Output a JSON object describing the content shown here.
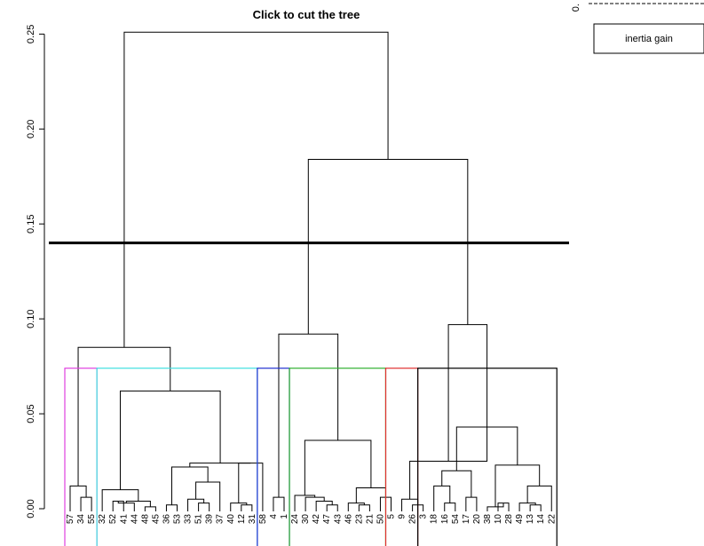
{
  "chart_data": {
    "type": "dendrogram",
    "title": "Click to cut the tree",
    "ylim": [
      0,
      0.26
    ],
    "yticks": [
      {
        "value": 0.0,
        "label": "0.00"
      },
      {
        "value": 0.05,
        "label": "0.05"
      },
      {
        "value": 0.1,
        "label": "0.10"
      },
      {
        "value": 0.15,
        "label": "0.15"
      },
      {
        "value": 0.2,
        "label": "0.20"
      },
      {
        "value": 0.25,
        "label": "0.25"
      }
    ],
    "cut_height": 0.14,
    "cluster_box_top": 0.074,
    "leaves": [
      "57",
      "34",
      "55",
      "32",
      "52",
      "41",
      "44",
      "48",
      "45",
      "36",
      "53",
      "33",
      "51",
      "39",
      "37",
      "40",
      "12",
      "31",
      "58",
      "4",
      "1",
      "24",
      "30",
      "42",
      "47",
      "43",
      "46",
      "23",
      "21",
      "50",
      "5",
      "9",
      "26",
      "3",
      "18",
      "16",
      "54",
      "17",
      "20",
      "38",
      "10",
      "28",
      "49",
      "13",
      "14",
      "22"
    ],
    "merges": [
      {
        "id": "m1",
        "left": "L:34",
        "right": "L:55",
        "h": 0.006
      },
      {
        "id": "m2",
        "left": "L:57",
        "right": "m1",
        "h": 0.012
      },
      {
        "id": "m3",
        "left": "L:52",
        "right": "L:41",
        "h": 0.004
      },
      {
        "id": "m4",
        "left": "m3",
        "right": "L:44",
        "h": 0.003
      },
      {
        "id": "m5",
        "left": "L:48",
        "right": "L:45",
        "h": 0.001
      },
      {
        "id": "m6",
        "left": "m4",
        "right": "m5",
        "h": 0.004
      },
      {
        "id": "m7",
        "left": "L:32",
        "right": "m6",
        "h": 0.01
      },
      {
        "id": "m8",
        "left": "L:36",
        "right": "L:53",
        "h": 0.002
      },
      {
        "id": "m9",
        "left": "L:51",
        "right": "L:39",
        "h": 0.003
      },
      {
        "id": "m10",
        "left": "L:33",
        "right": "m9",
        "h": 0.005
      },
      {
        "id": "m11",
        "left": "m10",
        "right": "L:37",
        "h": 0.014
      },
      {
        "id": "m12",
        "left": "m8",
        "right": "m11",
        "h": 0.022
      },
      {
        "id": "m13",
        "left": "L:12",
        "right": "L:31",
        "h": 0.002
      },
      {
        "id": "m14",
        "left": "m13",
        "right": "L:40",
        "h": 0.003
      },
      {
        "id": "m15",
        "left": "L:58",
        "right": "m14",
        "h": 0.024
      },
      {
        "id": "m16",
        "left": "m12",
        "right": "m15",
        "h": 0.024
      },
      {
        "id": "m17",
        "left": "m7",
        "right": "m16",
        "h": 0.062
      },
      {
        "id": "m18",
        "left": "m2",
        "right": "m17",
        "h": 0.085
      },
      {
        "id": "m19",
        "left": "L:4",
        "right": "L:1",
        "h": 0.006
      },
      {
        "id": "m20",
        "left": "L:47",
        "right": "L:43",
        "h": 0.002
      },
      {
        "id": "m21",
        "left": "L:42",
        "right": "m20",
        "h": 0.004
      },
      {
        "id": "m22",
        "left": "L:30",
        "right": "m21",
        "h": 0.006
      },
      {
        "id": "m23",
        "left": "L:24",
        "right": "m22",
        "h": 0.007
      },
      {
        "id": "m24",
        "left": "L:23",
        "right": "L:21",
        "h": 0.002
      },
      {
        "id": "m25",
        "left": "L:46",
        "right": "m24",
        "h": 0.003
      },
      {
        "id": "m26",
        "left": "L:50",
        "right": "L:5",
        "h": 0.006
      },
      {
        "id": "m27",
        "left": "m25",
        "right": "m26",
        "h": 0.011
      },
      {
        "id": "m28",
        "left": "m23",
        "right": "m27",
        "h": 0.036
      },
      {
        "id": "m29",
        "left": "m19",
        "right": "m28",
        "h": 0.092
      },
      {
        "id": "m30",
        "left": "L:26",
        "right": "L:3",
        "h": 0.002
      },
      {
        "id": "m31",
        "left": "L:9",
        "right": "m30",
        "h": 0.005
      },
      {
        "id": "m32",
        "left": "L:16",
        "right": "L:54",
        "h": 0.003
      },
      {
        "id": "m33",
        "left": "L:18",
        "right": "m32",
        "h": 0.012
      },
      {
        "id": "m34",
        "left": "L:17",
        "right": "L:20",
        "h": 0.006
      },
      {
        "id": "m35",
        "left": "m33",
        "right": "m34",
        "h": 0.02
      },
      {
        "id": "m36",
        "left": "L:10",
        "right": "L:28",
        "h": 0.003
      },
      {
        "id": "m37",
        "left": "L:38",
        "right": "m36",
        "h": 0.001
      },
      {
        "id": "m38",
        "left": "L:13",
        "right": "L:14",
        "h": 0.002
      },
      {
        "id": "m39",
        "left": "L:49",
        "right": "m38",
        "h": 0.003
      },
      {
        "id": "m40",
        "left": "m39",
        "right": "L:22",
        "h": 0.012
      },
      {
        "id": "m41",
        "left": "m37",
        "right": "m40",
        "h": 0.023
      },
      {
        "id": "m42",
        "left": "m35",
        "right": "m41",
        "h": 0.043
      },
      {
        "id": "m43",
        "left": "m31",
        "right": "m42",
        "h": 0.025
      },
      {
        "id": "m44",
        "left": "m43",
        "right": "m42",
        "h": 0.097
      },
      {
        "id": "m45",
        "left": "m29",
        "right": "m44",
        "h": 0.184
      },
      {
        "id": "m46",
        "left": "m18",
        "right": "m45",
        "h": 0.251
      }
    ],
    "clusters": [
      {
        "first": "57",
        "last": "55",
        "color": "#e040e0"
      },
      {
        "first": "32",
        "last": "31",
        "color": "#40e0e0"
      },
      {
        "first": "58",
        "last": "1",
        "color": "#2030d0"
      },
      {
        "first": "24",
        "last": "50",
        "color": "#30b030"
      },
      {
        "first": "5",
        "last": "26",
        "color": "#e03030"
      },
      {
        "first": "3",
        "last": "22",
        "color": "#000000"
      }
    ],
    "legend": {
      "label": "inertia gain",
      "placement": "top-right"
    },
    "inset_axis_label": "0."
  }
}
